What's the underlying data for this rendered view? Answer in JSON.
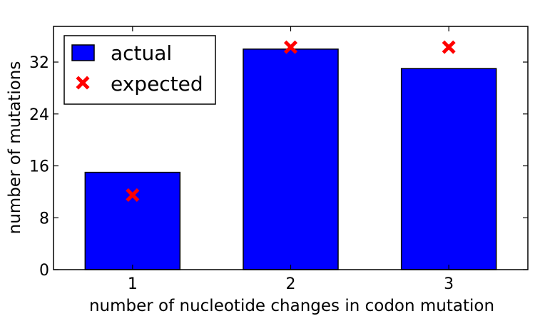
{
  "chart_data": {
    "type": "bar",
    "title": "",
    "xlabel": "number of nucleotide changes in codon mutation",
    "ylabel": "number of mutations",
    "categories": [
      "1",
      "2",
      "3"
    ],
    "series": [
      {
        "name": "actual",
        "kind": "bar",
        "color": "#0000ff",
        "values": [
          15,
          34,
          31
        ]
      },
      {
        "name": "expected",
        "kind": "scatter",
        "marker": "x",
        "color": "#ff0000",
        "values": [
          11.5,
          34.3,
          34.3
        ]
      }
    ],
    "ylim": [
      0,
      37.5
    ],
    "yticks": [
      0,
      8,
      16,
      24,
      32
    ],
    "grid": false,
    "legend": {
      "placement": "top-left"
    }
  }
}
